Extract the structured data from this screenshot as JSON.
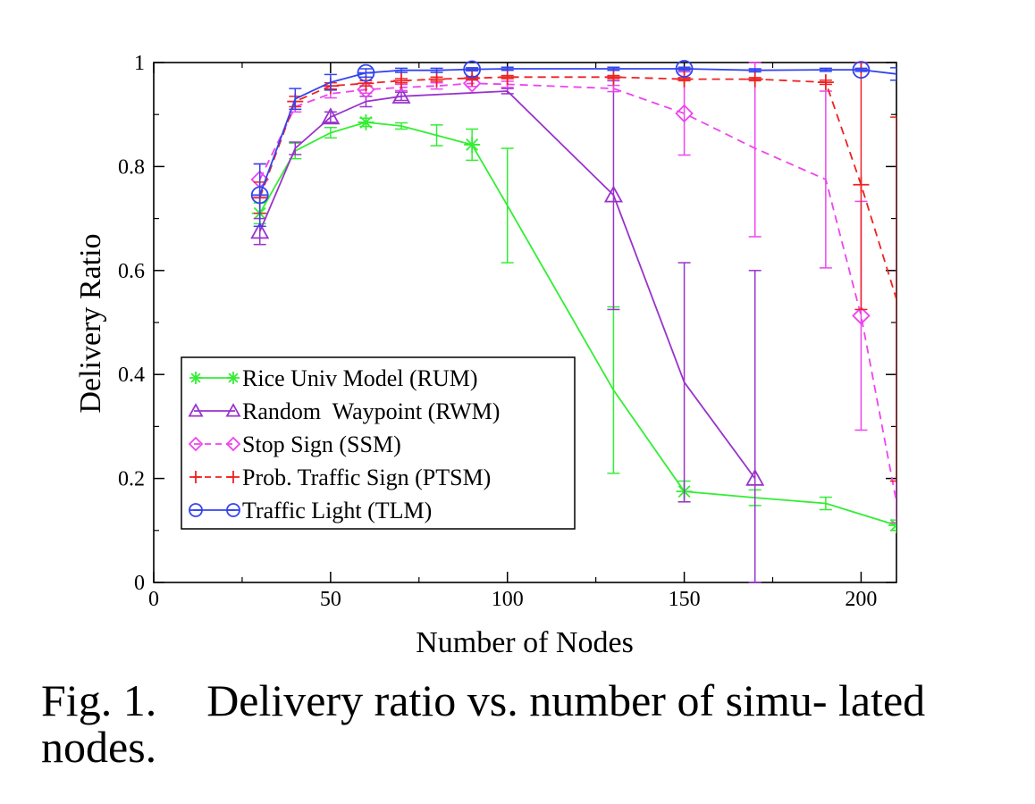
{
  "chart_data": {
    "type": "line",
    "title": "",
    "xlabel": "Number of Nodes",
    "ylabel": "Delivery Ratio",
    "xlim": [
      0,
      210
    ],
    "ylim": [
      0,
      1
    ],
    "xticks": [
      0,
      50,
      100,
      150,
      200
    ],
    "yticks": [
      0,
      0.2,
      0.4,
      0.6,
      0.8,
      1
    ],
    "xtick_labels": [
      "0",
      "50",
      "100",
      "150",
      "200"
    ],
    "ytick_labels": [
      "0",
      "0.2",
      "0.4",
      "0.6",
      "0.8",
      "1"
    ],
    "legend_position": "lower-left",
    "series": [
      {
        "name": "Rice Univ Model (RUM)",
        "color": "#33ee33",
        "dash": "solid",
        "marker": "star",
        "x": [
          30,
          40,
          50,
          60,
          70,
          80,
          90,
          100,
          130,
          150,
          170,
          190,
          210
        ],
        "y": [
          0.71,
          0.83,
          0.865,
          0.885,
          0.878,
          0.86,
          0.842,
          0.725,
          0.37,
          0.175,
          0.163,
          0.152,
          0.11
        ],
        "err": [
          0.02,
          0.015,
          0.01,
          0.008,
          0.006,
          0.02,
          0.03,
          0.11,
          0.16,
          0.02,
          0.015,
          0.012,
          0.01
        ],
        "markers_at": [
          30,
          60,
          90,
          150,
          210
        ]
      },
      {
        "name": "Random  Waypoint (RWM)",
        "color": "#9933cc",
        "dash": "solid",
        "marker": "triangle",
        "x": [
          30,
          40,
          50,
          60,
          70,
          100,
          130,
          150,
          170
        ],
        "y": [
          0.675,
          0.835,
          0.895,
          0.925,
          0.935,
          0.945,
          0.745,
          0.385,
          0.2
        ],
        "err": [
          0.025,
          0.012,
          0.01,
          0.01,
          0.008,
          0.005,
          0.22,
          0.23,
          0.4
        ],
        "markers_at": [
          30,
          50,
          70,
          130,
          170
        ]
      },
      {
        "name": "Stop Sign (SSM)",
        "color": "#ee44ee",
        "dash": "dashed",
        "marker": "diamond",
        "x": [
          30,
          40,
          50,
          60,
          70,
          80,
          90,
          100,
          130,
          150,
          170,
          190,
          200,
          210
        ],
        "y": [
          0.775,
          0.915,
          0.94,
          0.948,
          0.952,
          0.955,
          0.96,
          0.958,
          0.95,
          0.902,
          0.835,
          0.775,
          0.513,
          0.155
        ],
        "err": [
          0.03,
          0.01,
          0.008,
          0.007,
          0.006,
          0.006,
          0.006,
          0.006,
          0.006,
          0.08,
          0.17,
          0.17,
          0.22,
          0.04
        ],
        "markers_at": [
          30,
          60,
          90,
          150,
          200
        ]
      },
      {
        "name": "Prob. Traffic Sign (PTSM)",
        "color": "#ee2222",
        "dash": "dashed",
        "marker": "plus",
        "x": [
          30,
          40,
          50,
          60,
          70,
          80,
          90,
          100,
          130,
          150,
          170,
          190,
          200,
          210
        ],
        "y": [
          0.74,
          0.925,
          0.955,
          0.96,
          0.965,
          0.968,
          0.97,
          0.972,
          0.972,
          0.968,
          0.968,
          0.962,
          0.765,
          0.545
        ],
        "err": [
          0.03,
          0.01,
          0.006,
          0.005,
          0.004,
          0.004,
          0.003,
          0.003,
          0.003,
          0.003,
          0.003,
          0.004,
          0.24,
          0.35
        ],
        "markers_at": [
          30,
          40,
          50,
          60,
          70,
          80,
          90,
          100,
          130,
          150,
          170,
          190,
          200
        ]
      },
      {
        "name": "Traffic Light (TLM)",
        "color": "#3344ee",
        "dash": "solid",
        "marker": "circle",
        "x": [
          30,
          40,
          50,
          60,
          70,
          80,
          90,
          100,
          130,
          150,
          170,
          190,
          200,
          210
        ],
        "y": [
          0.745,
          0.93,
          0.962,
          0.98,
          0.985,
          0.985,
          0.987,
          0.988,
          0.988,
          0.988,
          0.985,
          0.986,
          0.986,
          0.978
        ],
        "err": [
          0.06,
          0.02,
          0.015,
          0.008,
          0.004,
          0.004,
          0.003,
          0.003,
          0.003,
          0.003,
          0.003,
          0.003,
          0.003,
          0.012
        ],
        "markers_at": [
          30,
          60,
          90,
          150,
          200
        ]
      }
    ]
  },
  "caption": {
    "label": "Fig. 1.",
    "text": "Delivery ratio vs. number of simu- lated nodes."
  }
}
